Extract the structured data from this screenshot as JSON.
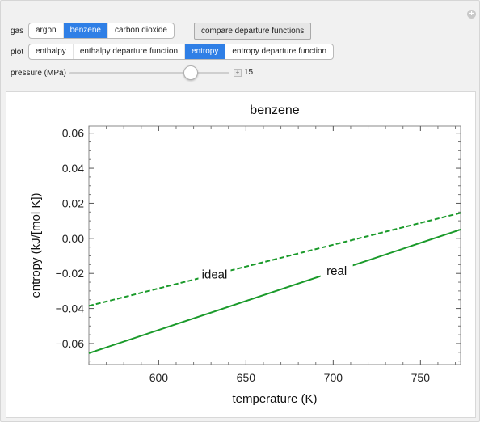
{
  "controls": {
    "gas": {
      "label": "gas",
      "options": [
        "argon",
        "benzene",
        "carbon dioxide"
      ],
      "selected": "benzene"
    },
    "compare_button": "compare departure functions",
    "plot": {
      "label": "plot",
      "options": [
        "enthalpy",
        "enthalpy departure function",
        "entropy",
        "entropy departure function"
      ],
      "selected": "entropy"
    },
    "pressure": {
      "label": "pressure (MPa)",
      "value": "15",
      "min": 0,
      "max": 20,
      "numeric": 15
    }
  },
  "colors": {
    "accent": "#2f7fe6",
    "series": "#1a9a2a"
  },
  "chart_data": {
    "type": "line",
    "title": "benzene",
    "xlabel": "temperature (K)",
    "ylabel": "entropy (kJ/[mol K])",
    "xlim": [
      560,
      773
    ],
    "ylim": [
      -0.072,
      0.064
    ],
    "xticks": [
      600,
      650,
      700,
      750
    ],
    "xtick_labels": [
      "600",
      "650",
      "700",
      "750"
    ],
    "yticks": [
      0.06,
      0.04,
      0.02,
      0.0,
      -0.02,
      -0.04,
      -0.06
    ],
    "ytick_labels": [
      "0.06",
      "0.04",
      "0.02",
      "0.00",
      "−0.02",
      "−0.04",
      "−0.06"
    ],
    "series": [
      {
        "name": "ideal",
        "style": "dashed",
        "x": [
          560,
          773
        ],
        "y": [
          -0.0385,
          0.0145
        ],
        "label_at": 632
      },
      {
        "name": "real",
        "style": "solid",
        "x": [
          560,
          773
        ],
        "y": [
          -0.0655,
          0.005
        ],
        "label_at": 702
      }
    ]
  }
}
